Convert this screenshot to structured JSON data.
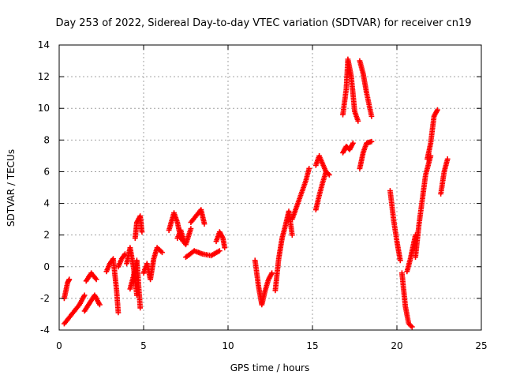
{
  "chart_data": {
    "type": "scatter",
    "title": "Day 253 of 2022, Sidereal Day-to-day VTEC variation (SDTVAR) for receiver cn19",
    "xlabel": "GPS time / hours",
    "ylabel": "SDTVAR / TECUs",
    "xlim": [
      0,
      25
    ],
    "ylim": [
      -4,
      14
    ],
    "xticks": [
      0,
      5,
      10,
      15,
      20,
      25
    ],
    "yticks": [
      -4,
      -2,
      0,
      2,
      4,
      6,
      8,
      10,
      12,
      14
    ],
    "grid": true,
    "marker": "plus",
    "series": [
      {
        "name": "SDTVAR",
        "color": "#ff0000",
        "segments": [
          {
            "x": [
              0.3,
              0.6,
              0.9,
              1.2,
              1.5
            ],
            "y": [
              -3.6,
              -3.2,
              -2.8,
              -2.4,
              -1.8
            ]
          },
          {
            "x": [
              0.3,
              0.4,
              0.5,
              0.6
            ],
            "y": [
              -2.0,
              -1.5,
              -1.0,
              -0.8
            ]
          },
          {
            "x": [
              1.5,
              1.8,
              2.1,
              2.4
            ],
            "y": [
              -2.8,
              -2.3,
              -1.8,
              -2.4
            ]
          },
          {
            "x": [
              1.6,
              1.9,
              2.2
            ],
            "y": [
              -0.9,
              -0.4,
              -0.8
            ]
          },
          {
            "x": [
              2.8,
              3.0,
              3.2,
              3.4,
              3.5
            ],
            "y": [
              -0.3,
              0.2,
              0.5,
              -1.5,
              -2.9
            ]
          },
          {
            "x": [
              3.5,
              3.7,
              3.9
            ],
            "y": [
              0.0,
              0.5,
              0.8
            ]
          },
          {
            "x": [
              4.0,
              4.2,
              4.4,
              4.6
            ],
            "y": [
              0.2,
              1.2,
              0.0,
              -1.8
            ]
          },
          {
            "x": [
              4.2,
              4.4,
              4.6,
              4.8
            ],
            "y": [
              -1.4,
              -0.6,
              0.4,
              -2.6
            ]
          },
          {
            "x": [
              4.5,
              4.6,
              4.8,
              4.9
            ],
            "y": [
              1.8,
              2.8,
              3.2,
              2.2
            ]
          },
          {
            "x": [
              5.0,
              5.2,
              5.4,
              5.6,
              5.8,
              6.1
            ],
            "y": [
              -0.4,
              0.2,
              -0.8,
              0.5,
              1.2,
              0.9
            ]
          },
          {
            "x": [
              6.5,
              6.8,
              7.0,
              7.2,
              7.5,
              7.8
            ],
            "y": [
              2.3,
              3.4,
              2.8,
              1.8,
              1.4,
              2.4
            ]
          },
          {
            "x": [
              7.0,
              7.2,
              7.4
            ],
            "y": [
              1.8,
              2.3,
              1.6
            ]
          },
          {
            "x": [
              7.8,
              8.1,
              8.4,
              8.6
            ],
            "y": [
              2.8,
              3.2,
              3.6,
              2.7
            ]
          },
          {
            "x": [
              7.5,
              8.0,
              8.5,
              9.0,
              9.5
            ],
            "y": [
              0.6,
              1.0,
              0.8,
              0.7,
              1.0
            ]
          },
          {
            "x": [
              9.3,
              9.5,
              9.7,
              9.8
            ],
            "y": [
              1.6,
              2.2,
              1.8,
              1.2
            ]
          },
          {
            "x": [
              11.6,
              11.8,
              12.0,
              12.2,
              12.4,
              12.6
            ],
            "y": [
              0.4,
              -1.2,
              -2.4,
              -1.5,
              -0.8,
              -0.4
            ]
          },
          {
            "x": [
              12.8,
              13.0,
              13.2,
              13.4,
              13.6,
              13.8
            ],
            "y": [
              -1.5,
              0.5,
              1.8,
              2.6,
              3.5,
              2.0
            ]
          },
          {
            "x": [
              13.8,
              14.0,
              14.2,
              14.4,
              14.6,
              14.8
            ],
            "y": [
              3.0,
              3.6,
              4.2,
              4.8,
              5.4,
              6.2
            ]
          },
          {
            "x": [
              15.2,
              15.4,
              15.6,
              15.8
            ],
            "y": [
              3.6,
              4.5,
              5.3,
              6.0
            ]
          },
          {
            "x": [
              15.2,
              15.4,
              15.6,
              15.8,
              16.0
            ],
            "y": [
              6.4,
              7.0,
              6.5,
              6.0,
              5.8
            ]
          },
          {
            "x": [
              16.8,
              17.0,
              17.2,
              17.4
            ],
            "y": [
              7.2,
              7.6,
              7.4,
              7.8
            ]
          },
          {
            "x": [
              16.8,
              17.0,
              17.1,
              17.3,
              17.5,
              17.7
            ],
            "y": [
              9.6,
              11.2,
              13.1,
              12.0,
              9.8,
              9.2
            ]
          },
          {
            "x": [
              17.8,
              18.0,
              18.2,
              18.5
            ],
            "y": [
              13.0,
              12.2,
              11.0,
              9.5
            ]
          },
          {
            "x": [
              17.8,
              18.0,
              18.2,
              18.5
            ],
            "y": [
              6.2,
              7.2,
              7.8,
              7.9
            ]
          },
          {
            "x": [
              19.6,
              19.8,
              20.0,
              20.2
            ],
            "y": [
              4.8,
              3.0,
              1.6,
              0.4
            ]
          },
          {
            "x": [
              20.3,
              20.5,
              20.7,
              20.9
            ],
            "y": [
              -0.4,
              -2.5,
              -3.6,
              -3.8
            ]
          },
          {
            "x": [
              20.6,
              20.8,
              21.0,
              21.1
            ],
            "y": [
              -0.3,
              0.5,
              1.5,
              2.0
            ]
          },
          {
            "x": [
              21.1,
              21.3,
              21.5,
              21.7,
              22.0
            ],
            "y": [
              0.6,
              2.6,
              4.2,
              5.8,
              7.0
            ]
          },
          {
            "x": [
              21.8,
              22.0,
              22.2,
              22.4
            ],
            "y": [
              6.8,
              7.8,
              9.5,
              9.9
            ]
          },
          {
            "x": [
              22.6,
              22.8,
              23.0
            ],
            "y": [
              4.6,
              6.0,
              6.8
            ]
          }
        ]
      }
    ]
  }
}
